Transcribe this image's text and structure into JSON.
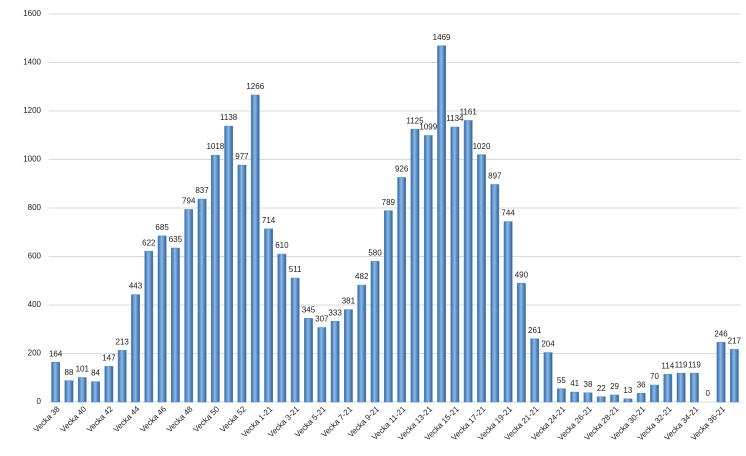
{
  "chart_data": {
    "type": "bar",
    "categories": [
      "Vecka 38",
      null,
      "Vecka 40",
      null,
      "Vecka 42",
      null,
      "Vecka 44",
      null,
      "Vecka 46",
      null,
      "Vecka 48",
      null,
      "Vecka 50",
      null,
      "Vecka 52",
      null,
      "Vecka 1-21",
      null,
      "Vecka 3-21",
      null,
      "Vecka 5-21",
      null,
      "Vecka 7-21",
      null,
      "Vecka 9-21",
      null,
      "Vecka 11-21",
      null,
      "Vecka 13-21",
      null,
      "Vecka 15-21",
      null,
      "Vecka 17-21",
      null,
      "Vecka 19-21",
      null,
      "Vecka 21-21",
      null,
      "Vecka 24-21",
      null,
      "Vecka 26-21",
      null,
      "Vecka 28-21",
      null,
      "Vecka 30-21",
      null,
      "Vecka 32-21",
      null,
      "Vecka 34-21",
      null,
      "Vecka 36-21",
      null
    ],
    "values": [
      164,
      88,
      101,
      84,
      147,
      213,
      443,
      622,
      685,
      635,
      794,
      837,
      1018,
      1138,
      977,
      1266,
      714,
      610,
      511,
      345,
      307,
      333,
      381,
      482,
      580,
      789,
      926,
      1125,
      1099,
      1469,
      1134,
      1161,
      1020,
      897,
      744,
      490,
      261,
      204,
      55,
      41,
      38,
      22,
      29,
      13,
      36,
      70,
      114,
      119,
      119,
      0,
      246,
      217
    ],
    "color": "#4a86c5",
    "ylim": [
      0,
      1600
    ],
    "yticks": [
      0,
      200,
      400,
      600,
      800,
      1000,
      1200,
      1400,
      1600
    ],
    "grid": true
  }
}
